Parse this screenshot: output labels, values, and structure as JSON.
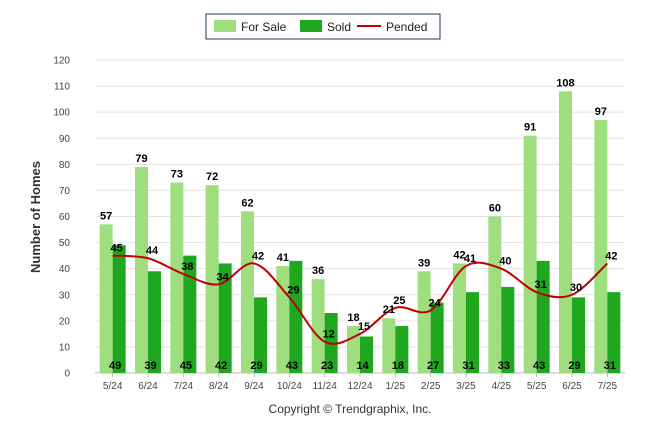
{
  "chart_data": {
    "type": "bar",
    "ylabel": "Number of Homes",
    "xlabel": "",
    "ylim": [
      0,
      120
    ],
    "yticks": [
      0,
      10,
      20,
      30,
      40,
      50,
      60,
      70,
      80,
      90,
      100,
      110,
      120
    ],
    "grid": true,
    "legend_position": "top-center",
    "categories": [
      "5/24",
      "6/24",
      "7/24",
      "8/24",
      "9/24",
      "10/24",
      "11/24",
      "12/24",
      "1/25",
      "2/25",
      "3/25",
      "4/25",
      "5/25",
      "6/25",
      "7/25"
    ],
    "series": [
      {
        "name": "For Sale",
        "kind": "bar",
        "color": "#9ede7f",
        "values": [
          57,
          79,
          73,
          72,
          62,
          41,
          36,
          18,
          21,
          39,
          42,
          60,
          91,
          108,
          97
        ]
      },
      {
        "name": "Sold",
        "kind": "bar",
        "color": "#1fa81f",
        "values": [
          49,
          39,
          45,
          42,
          29,
          43,
          23,
          14,
          18,
          27,
          31,
          33,
          43,
          29,
          31
        ]
      },
      {
        "name": "Pended",
        "kind": "line",
        "color": "#c00000",
        "values": [
          45,
          44,
          38,
          34,
          42,
          29,
          12,
          15,
          25,
          24,
          41,
          40,
          31,
          30,
          42
        ]
      }
    ],
    "credit": "Copyright © Trendgraphix, Inc."
  }
}
